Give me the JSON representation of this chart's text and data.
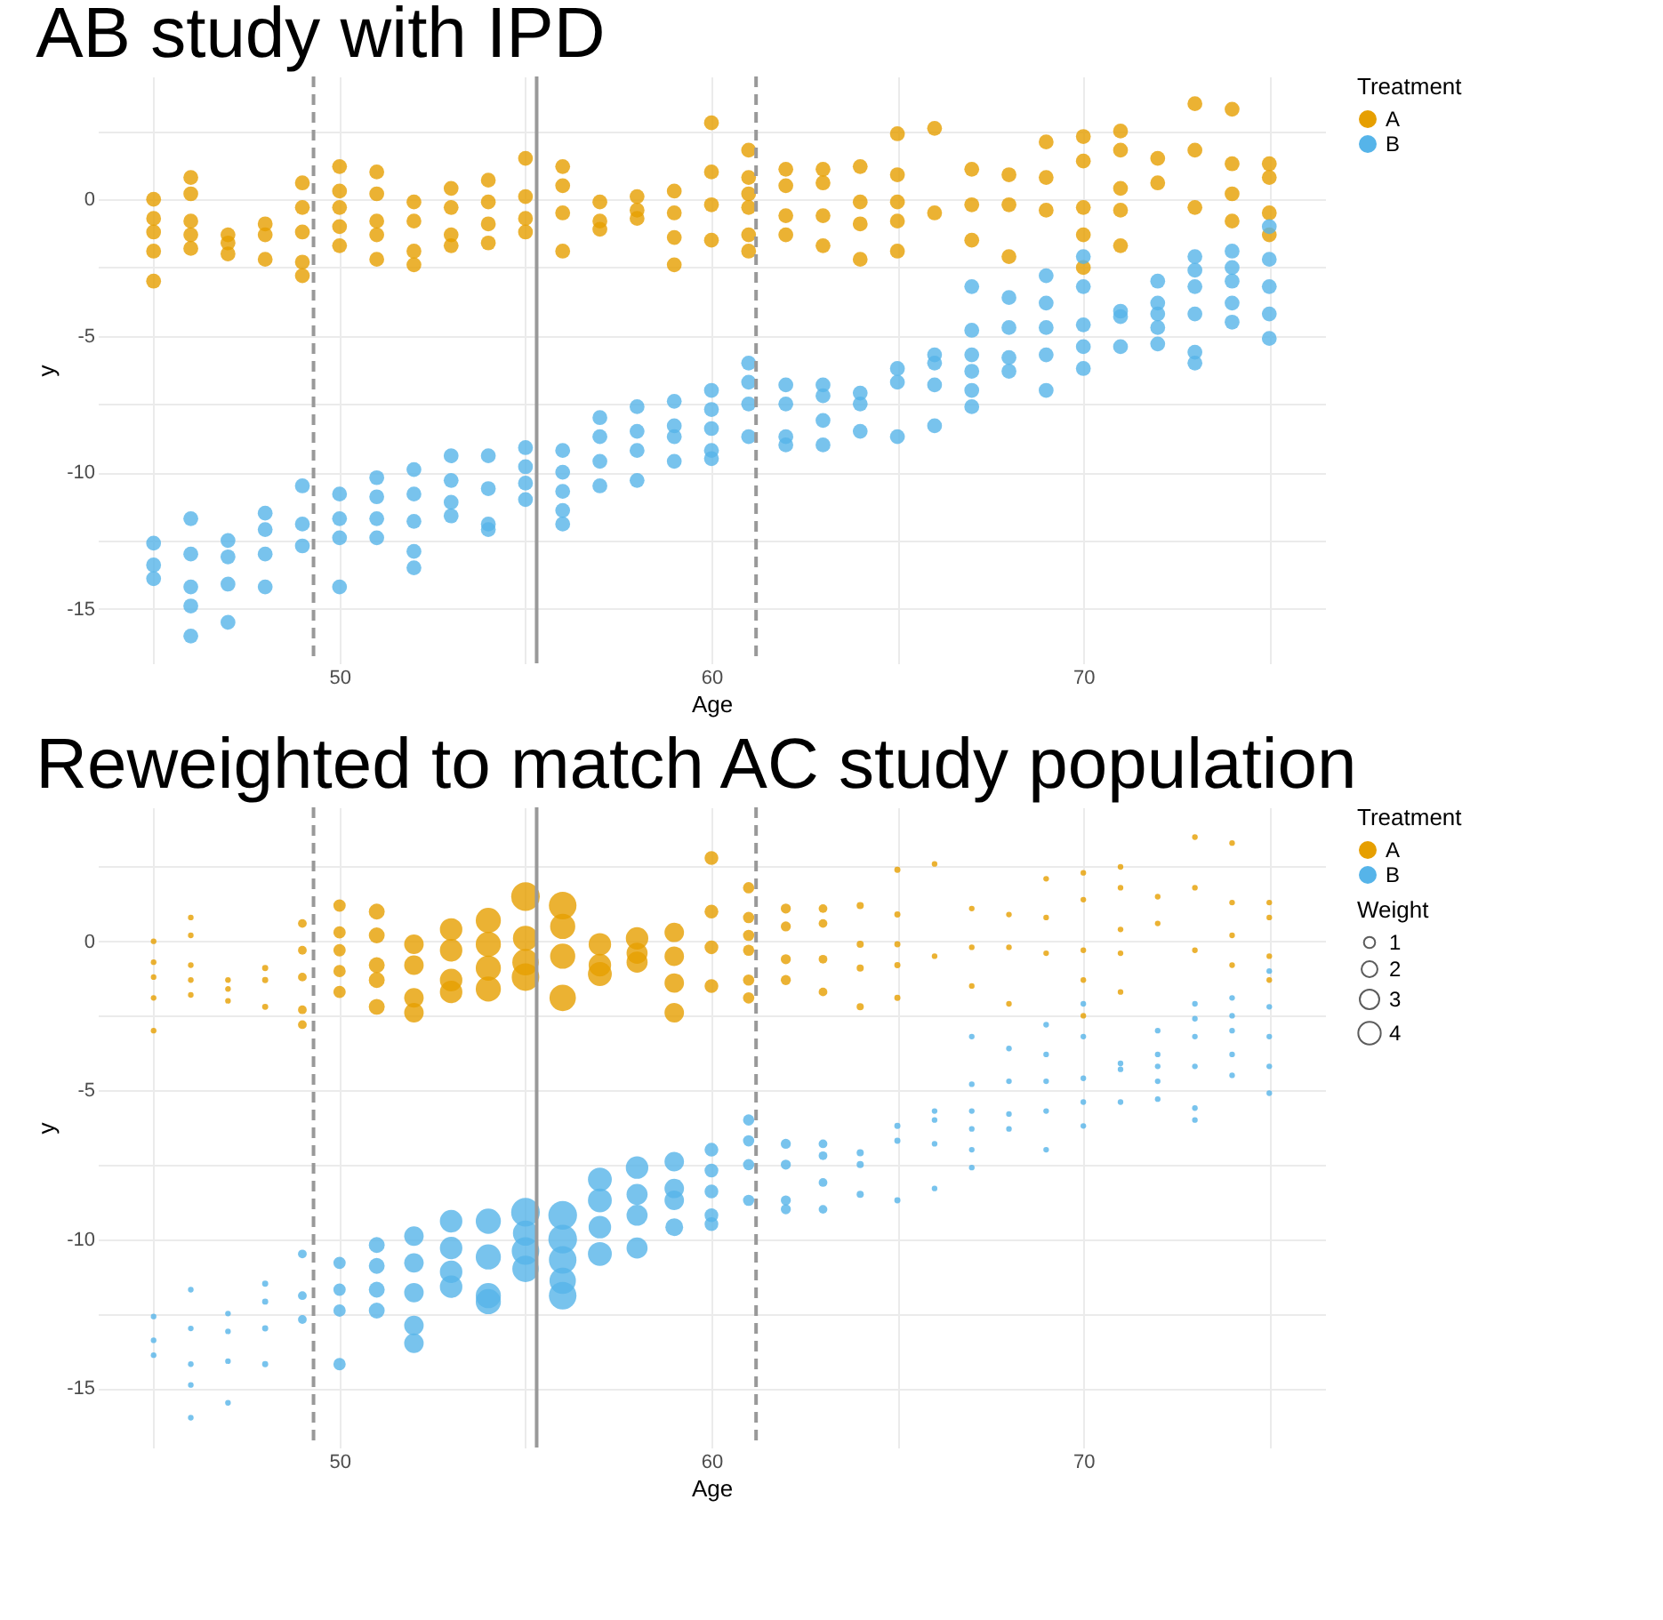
{
  "chart_data": [
    {
      "type": "scatter",
      "title": "AB study with IPD",
      "xlabel": "Age",
      "ylabel": "y",
      "legend_title": "Treatment",
      "legend": "right",
      "grid": true,
      "marker": "circle",
      "xlim": [
        43.5,
        76.5
      ],
      "ylim": [
        -17,
        4.5
      ],
      "xticks": [
        {
          "value": 45,
          "label": null
        },
        50,
        {
          "value": 55,
          "label": null
        },
        60,
        {
          "value": 65,
          "label": null
        },
        70,
        {
          "value": 75,
          "label": null
        }
      ],
      "yticks": [
        -15,
        {
          "value": -12.5,
          "label": null
        },
        -10,
        {
          "value": -7.5,
          "label": null
        },
        -5,
        {
          "value": -2.5,
          "label": null
        },
        0,
        {
          "value": 2.5,
          "label": null
        }
      ],
      "ref_lines": [
        {
          "axis": "x",
          "value": 49.3,
          "color": "#999999",
          "line_style": "dashed"
        },
        {
          "axis": "x",
          "value": 55.3,
          "color": "#999999",
          "line_style": "solid"
        },
        {
          "axis": "x",
          "value": 61.2,
          "color": "#999999",
          "line_style": "dashed"
        }
      ],
      "series": [
        {
          "name": "A",
          "color": "#e69f00",
          "x": [
            45,
            45,
            45,
            45,
            45,
            46,
            46,
            46,
            46,
            46,
            47,
            47,
            47,
            48,
            48,
            48,
            49,
            49,
            49,
            49,
            49,
            50,
            50,
            50,
            50,
            50,
            51,
            51,
            51,
            51,
            51,
            52,
            52,
            52,
            52,
            53,
            53,
            53,
            53,
            54,
            54,
            54,
            54,
            55,
            55,
            55,
            55,
            56,
            56,
            56,
            56,
            57,
            57,
            57,
            58,
            58,
            58,
            59,
            59,
            59,
            59,
            60,
            60,
            60,
            60,
            61,
            61,
            61,
            61,
            61,
            61,
            62,
            62,
            62,
            62,
            63,
            63,
            63,
            63,
            64,
            64,
            64,
            64,
            65,
            65,
            65,
            65,
            65,
            66,
            66,
            67,
            67,
            67,
            68,
            68,
            68,
            69,
            69,
            69,
            70,
            70,
            70,
            70,
            70,
            71,
            71,
            71,
            71,
            71,
            72,
            72,
            73,
            73,
            73,
            74,
            74,
            74,
            74,
            75,
            75,
            75,
            75
          ],
          "values": [
            0,
            -0.7,
            -1.2,
            -1.9,
            -3.0,
            0.8,
            0.2,
            -0.8,
            -1.3,
            -1.8,
            -1.3,
            -1.6,
            -2.0,
            -0.9,
            -1.3,
            -2.2,
            0.6,
            -0.3,
            -1.2,
            -2.3,
            -2.8,
            1.2,
            0.3,
            -0.3,
            -1.0,
            -1.7,
            1.0,
            0.2,
            -0.8,
            -1.3,
            -2.2,
            -0.1,
            -0.8,
            -1.9,
            -2.4,
            0.4,
            -0.3,
            -1.3,
            -1.7,
            0.7,
            -0.1,
            -0.9,
            -1.6,
            1.5,
            0.1,
            -0.7,
            -1.2,
            1.2,
            0.5,
            -0.5,
            -1.9,
            -0.1,
            -0.8,
            -1.1,
            0.1,
            -0.4,
            -0.7,
            0.3,
            -0.5,
            -1.4,
            -2.4,
            2.8,
            1.0,
            -0.2,
            -1.5,
            1.8,
            0.8,
            0.2,
            -0.3,
            -1.3,
            -1.9,
            1.1,
            0.5,
            -0.6,
            -1.3,
            1.1,
            0.6,
            -0.6,
            -1.7,
            1.2,
            -0.1,
            -0.9,
            -2.2,
            2.4,
            0.9,
            -0.1,
            -0.8,
            -1.9,
            2.6,
            -0.5,
            1.1,
            -0.2,
            -1.5,
            0.9,
            -0.2,
            -2.1,
            2.1,
            0.8,
            -0.4,
            2.3,
            1.4,
            -0.3,
            -1.3,
            -2.5,
            2.5,
            1.8,
            0.4,
            -0.4,
            -1.7,
            1.5,
            0.6,
            3.5,
            1.8,
            -0.3,
            3.3,
            1.3,
            0.2,
            -0.8,
            1.3,
            0.8,
            -0.5,
            -1.3
          ]
        },
        {
          "name": "B",
          "color": "#56b4e9",
          "x": [
            45,
            45,
            45,
            46,
            46,
            46,
            46,
            46,
            47,
            47,
            47,
            47,
            48,
            48,
            48,
            48,
            49,
            49,
            49,
            50,
            50,
            50,
            50,
            51,
            51,
            51,
            51,
            52,
            52,
            52,
            52,
            52,
            53,
            53,
            53,
            53,
            54,
            54,
            54,
            54,
            55,
            55,
            55,
            55,
            56,
            56,
            56,
            56,
            56,
            57,
            57,
            57,
            57,
            58,
            58,
            58,
            58,
            59,
            59,
            59,
            59,
            60,
            60,
            60,
            60,
            60,
            61,
            61,
            61,
            61,
            62,
            62,
            62,
            62,
            63,
            63,
            63,
            63,
            64,
            64,
            64,
            65,
            65,
            65,
            66,
            66,
            66,
            66,
            67,
            67,
            67,
            67,
            67,
            67,
            68,
            68,
            68,
            68,
            69,
            69,
            69,
            69,
            69,
            70,
            70,
            70,
            70,
            70,
            71,
            71,
            71,
            72,
            72,
            72,
            72,
            72,
            73,
            73,
            73,
            73,
            73,
            73,
            74,
            74,
            74,
            74,
            74,
            75,
            75,
            75,
            75,
            75
          ],
          "values": [
            -12.6,
            -13.4,
            -13.9,
            -11.7,
            -13.0,
            -14.2,
            -14.9,
            -16.0,
            -12.5,
            -13.1,
            -14.1,
            -15.5,
            -11.5,
            -12.1,
            -13.0,
            -14.2,
            -10.5,
            -11.9,
            -12.7,
            -10.8,
            -11.7,
            -12.4,
            -14.2,
            -10.2,
            -10.9,
            -11.7,
            -12.4,
            -9.9,
            -10.8,
            -11.8,
            -12.9,
            -13.5,
            -9.4,
            -10.3,
            -11.1,
            -11.6,
            -9.4,
            -10.6,
            -11.9,
            -12.1,
            -9.1,
            -9.8,
            -10.4,
            -11.0,
            -9.2,
            -10.0,
            -10.7,
            -11.4,
            -11.9,
            -8.0,
            -8.7,
            -9.6,
            -10.5,
            -7.6,
            -8.5,
            -9.2,
            -10.3,
            -7.4,
            -8.3,
            -8.7,
            -9.6,
            -7.0,
            -7.7,
            -8.4,
            -9.2,
            -9.5,
            -6.0,
            -6.7,
            -7.5,
            -8.7,
            -6.8,
            -7.5,
            -8.7,
            -9.0,
            -6.8,
            -7.2,
            -8.1,
            -9.0,
            -7.1,
            -7.5,
            -8.5,
            -6.2,
            -6.7,
            -8.7,
            -5.7,
            -6.0,
            -6.8,
            -8.3,
            -3.2,
            -4.8,
            -5.7,
            -6.3,
            -7.0,
            -7.6,
            -3.6,
            -4.7,
            -5.8,
            -6.3,
            -2.8,
            -3.8,
            -4.7,
            -5.7,
            -7.0,
            -2.1,
            -3.2,
            -4.6,
            -5.4,
            -6.2,
            -4.1,
            -4.3,
            -5.4,
            -3.0,
            -3.8,
            -4.2,
            -4.7,
            -5.3,
            -2.1,
            -2.6,
            -3.2,
            -4.2,
            -5.6,
            -6.0,
            -1.9,
            -2.5,
            -3.0,
            -3.8,
            -4.5,
            -1.0,
            -2.2,
            -3.2,
            -4.2,
            -5.1
          ]
        }
      ]
    },
    {
      "type": "bubble",
      "title": "Reweighted to match AC study population",
      "xlabel": "Age",
      "ylabel": "y",
      "legend_title": [
        "Treatment",
        "Weight"
      ],
      "legend": "right",
      "grid": true,
      "marker": "circle",
      "size_legend": [
        1,
        2,
        3,
        4
      ],
      "xlim": [
        43.5,
        76.5
      ],
      "ylim": [
        -17,
        4.5
      ],
      "xticks": [
        {
          "value": 45,
          "label": null
        },
        50,
        {
          "value": 55,
          "label": null
        },
        60,
        {
          "value": 65,
          "label": null
        },
        70,
        {
          "value": 75,
          "label": null
        }
      ],
      "yticks": [
        -15,
        {
          "value": -12.5,
          "label": null
        },
        -10,
        {
          "value": -7.5,
          "label": null
        },
        -5,
        {
          "value": -2.5,
          "label": null
        },
        0,
        {
          "value": 2.5,
          "label": null
        }
      ],
      "ref_lines": [
        {
          "axis": "x",
          "value": 49.3,
          "color": "#999999",
          "line_style": "dashed"
        },
        {
          "axis": "x",
          "value": 55.3,
          "color": "#999999",
          "line_style": "solid"
        },
        {
          "axis": "x",
          "value": 61.2,
          "color": "#999999",
          "line_style": "dashed"
        }
      ],
      "series": [
        {
          "name": "A",
          "color": "#e69f00",
          "x": [
            45,
            45,
            45,
            45,
            45,
            46,
            46,
            46,
            46,
            46,
            47,
            47,
            47,
            48,
            48,
            48,
            49,
            49,
            49,
            49,
            49,
            50,
            50,
            50,
            50,
            50,
            51,
            51,
            51,
            51,
            51,
            52,
            52,
            52,
            52,
            53,
            53,
            53,
            53,
            54,
            54,
            54,
            54,
            55,
            55,
            55,
            55,
            56,
            56,
            56,
            56,
            57,
            57,
            57,
            58,
            58,
            58,
            59,
            59,
            59,
            59,
            60,
            60,
            60,
            60,
            61,
            61,
            61,
            61,
            61,
            61,
            62,
            62,
            62,
            62,
            63,
            63,
            63,
            63,
            64,
            64,
            64,
            64,
            65,
            65,
            65,
            65,
            65,
            66,
            66,
            67,
            67,
            67,
            68,
            68,
            68,
            69,
            69,
            69,
            70,
            70,
            70,
            70,
            70,
            71,
            71,
            71,
            71,
            71,
            72,
            72,
            73,
            73,
            73,
            74,
            74,
            74,
            74,
            75,
            75,
            75,
            75
          ],
          "values": [
            0,
            -0.7,
            -1.2,
            -1.9,
            -3.0,
            0.8,
            0.2,
            -0.8,
            -1.3,
            -1.8,
            -1.3,
            -1.6,
            -2.0,
            -0.9,
            -1.3,
            -2.2,
            0.6,
            -0.3,
            -1.2,
            -2.3,
            -2.8,
            1.2,
            0.3,
            -0.3,
            -1.0,
            -1.7,
            1.0,
            0.2,
            -0.8,
            -1.3,
            -2.2,
            -0.1,
            -0.8,
            -1.9,
            -2.4,
            0.4,
            -0.3,
            -1.3,
            -1.7,
            0.7,
            -0.1,
            -0.9,
            -1.6,
            1.5,
            0.1,
            -0.7,
            -1.2,
            1.2,
            0.5,
            -0.5,
            -1.9,
            -0.1,
            -0.8,
            -1.1,
            0.1,
            -0.4,
            -0.7,
            0.3,
            -0.5,
            -1.4,
            -2.4,
            2.8,
            1.0,
            -0.2,
            -1.5,
            1.8,
            0.8,
            0.2,
            -0.3,
            -1.3,
            -1.9,
            1.1,
            0.5,
            -0.6,
            -1.3,
            1.1,
            0.6,
            -0.6,
            -1.7,
            1.2,
            -0.1,
            -0.9,
            -2.2,
            2.4,
            0.9,
            -0.1,
            -0.8,
            -1.9,
            2.6,
            -0.5,
            1.1,
            -0.2,
            -1.5,
            0.9,
            -0.2,
            -2.1,
            2.1,
            0.8,
            -0.4,
            2.3,
            1.4,
            -0.3,
            -1.3,
            -2.5,
            2.5,
            1.8,
            0.4,
            -0.4,
            -1.7,
            1.5,
            0.6,
            3.5,
            1.8,
            -0.3,
            3.3,
            1.3,
            0.2,
            -0.8,
            1.3,
            0.8,
            -0.5,
            -1.3
          ],
          "sizes": [
            0.25,
            0.25,
            0.25,
            0.25,
            0.25,
            0.25,
            0.25,
            0.25,
            0.25,
            0.25,
            0.25,
            0.25,
            0.25,
            0.3,
            0.3,
            0.3,
            0.6,
            0.6,
            0.6,
            0.6,
            0.6,
            1.2,
            1.2,
            1.2,
            1.2,
            1.2,
            2,
            2,
            2,
            2,
            2,
            3,
            3,
            3,
            3,
            4,
            4,
            4,
            4,
            5,
            5,
            5,
            5,
            6.5,
            5,
            5.5,
            6,
            6,
            5,
            5,
            5.5,
            4,
            4,
            4.5,
            4,
            3.5,
            3.5,
            3,
            3,
            3,
            3,
            1.5,
            1.5,
            1.5,
            1.5,
            1,
            1,
            1,
            1,
            1,
            1,
            0.8,
            0.8,
            0.8,
            0.8,
            0.6,
            0.6,
            0.6,
            0.6,
            0.4,
            0.4,
            0.4,
            0.4,
            0.3,
            0.3,
            0.3,
            0.3,
            0.3,
            0.25,
            0.25,
            0.25,
            0.25,
            0.25,
            0.25,
            0.25,
            0.25,
            0.25,
            0.25,
            0.25,
            0.25,
            0.25,
            0.25,
            0.25,
            0.25,
            0.25,
            0.25,
            0.25,
            0.25,
            0.25,
            0.25,
            0.25,
            0.25,
            0.25,
            0.25,
            0.25,
            0.25,
            0.25,
            0.25,
            0.25,
            0.25,
            0.25,
            0.25
          ]
        },
        {
          "name": "B",
          "color": "#56b4e9",
          "x": [
            45,
            45,
            45,
            46,
            46,
            46,
            46,
            46,
            47,
            47,
            47,
            47,
            48,
            48,
            48,
            48,
            49,
            49,
            49,
            50,
            50,
            50,
            50,
            51,
            51,
            51,
            51,
            52,
            52,
            52,
            52,
            52,
            53,
            53,
            53,
            53,
            54,
            54,
            54,
            54,
            55,
            55,
            55,
            55,
            56,
            56,
            56,
            56,
            56,
            57,
            57,
            57,
            57,
            58,
            58,
            58,
            58,
            59,
            59,
            59,
            59,
            60,
            60,
            60,
            60,
            60,
            61,
            61,
            61,
            61,
            62,
            62,
            62,
            62,
            63,
            63,
            63,
            63,
            64,
            64,
            64,
            65,
            65,
            65,
            66,
            66,
            66,
            66,
            67,
            67,
            67,
            67,
            67,
            67,
            68,
            68,
            68,
            68,
            69,
            69,
            69,
            69,
            69,
            70,
            70,
            70,
            70,
            70,
            71,
            71,
            71,
            72,
            72,
            72,
            72,
            72,
            73,
            73,
            73,
            73,
            73,
            73,
            74,
            74,
            74,
            74,
            74,
            75,
            75,
            75,
            75,
            75
          ],
          "values": [
            -12.6,
            -13.4,
            -13.9,
            -11.7,
            -13.0,
            -14.2,
            -14.9,
            -16.0,
            -12.5,
            -13.1,
            -14.1,
            -15.5,
            -11.5,
            -12.1,
            -13.0,
            -14.2,
            -10.5,
            -11.9,
            -12.7,
            -10.8,
            -11.7,
            -12.4,
            -14.2,
            -10.2,
            -10.9,
            -11.7,
            -12.4,
            -9.9,
            -10.8,
            -11.8,
            -12.9,
            -13.5,
            -9.4,
            -10.3,
            -11.1,
            -11.6,
            -9.4,
            -10.6,
            -11.9,
            -12.1,
            -9.1,
            -9.8,
            -10.4,
            -11.0,
            -9.2,
            -10.0,
            -10.7,
            -11.4,
            -11.9,
            -8.0,
            -8.7,
            -9.6,
            -10.5,
            -7.6,
            -8.5,
            -9.2,
            -10.3,
            -7.4,
            -8.3,
            -8.7,
            -9.6,
            -7.0,
            -7.7,
            -8.4,
            -9.2,
            -9.5,
            -6.0,
            -6.7,
            -7.5,
            -8.7,
            -6.8,
            -7.5,
            -8.7,
            -9.0,
            -6.8,
            -7.2,
            -8.1,
            -9.0,
            -7.1,
            -7.5,
            -8.5,
            -6.2,
            -6.7,
            -8.7,
            -5.7,
            -6.0,
            -6.8,
            -8.3,
            -3.2,
            -4.8,
            -5.7,
            -6.3,
            -7.0,
            -7.6,
            -3.6,
            -4.7,
            -5.8,
            -6.3,
            -2.8,
            -3.8,
            -4.7,
            -5.7,
            -7.0,
            -2.1,
            -3.2,
            -4.6,
            -5.4,
            -6.2,
            -4.1,
            -4.3,
            -5.4,
            -3.0,
            -3.8,
            -4.2,
            -4.7,
            -5.3,
            -2.1,
            -2.6,
            -3.2,
            -4.2,
            -5.6,
            -6.0,
            -1.9,
            -2.5,
            -3.0,
            -3.8,
            -4.5,
            -1.0,
            -2.2,
            -3.2,
            -4.2,
            -5.1
          ],
          "sizes": [
            0.25,
            0.25,
            0.25,
            0.25,
            0.25,
            0.25,
            0.25,
            0.25,
            0.25,
            0.25,
            0.25,
            0.25,
            0.3,
            0.3,
            0.3,
            0.3,
            0.6,
            0.6,
            0.6,
            1.2,
            1.2,
            1.2,
            1.2,
            2,
            2,
            2,
            2,
            3,
            3,
            3,
            3,
            3,
            4,
            4,
            4,
            4,
            5,
            5,
            5,
            5,
            6.5,
            5,
            6,
            5.5,
            6.5,
            6.5,
            6,
            5.5,
            6,
            4.5,
            4.5,
            4,
            4.5,
            4,
            3.5,
            3.5,
            3.5,
            3,
            3,
            3,
            2.5,
            1.5,
            1.5,
            1.5,
            1.5,
            1.5,
            1,
            1,
            1,
            1,
            0.8,
            0.8,
            0.8,
            0.8,
            0.6,
            0.6,
            0.6,
            0.6,
            0.4,
            0.4,
            0.4,
            0.3,
            0.3,
            0.3,
            0.25,
            0.25,
            0.25,
            0.25,
            0.25,
            0.25,
            0.25,
            0.25,
            0.25,
            0.25,
            0.25,
            0.25,
            0.25,
            0.25,
            0.25,
            0.25,
            0.25,
            0.25,
            0.25,
            0.25,
            0.25,
            0.25,
            0.25,
            0.25,
            0.25,
            0.25,
            0.25,
            0.25,
            0.25,
            0.25,
            0.25,
            0.25,
            0.25,
            0.25,
            0.25,
            0.25,
            0.25,
            0.25,
            0.25,
            0.25,
            0.25,
            0.25,
            0.25,
            0.25,
            0.25,
            0.25,
            0.25,
            0.25
          ]
        }
      ]
    }
  ]
}
